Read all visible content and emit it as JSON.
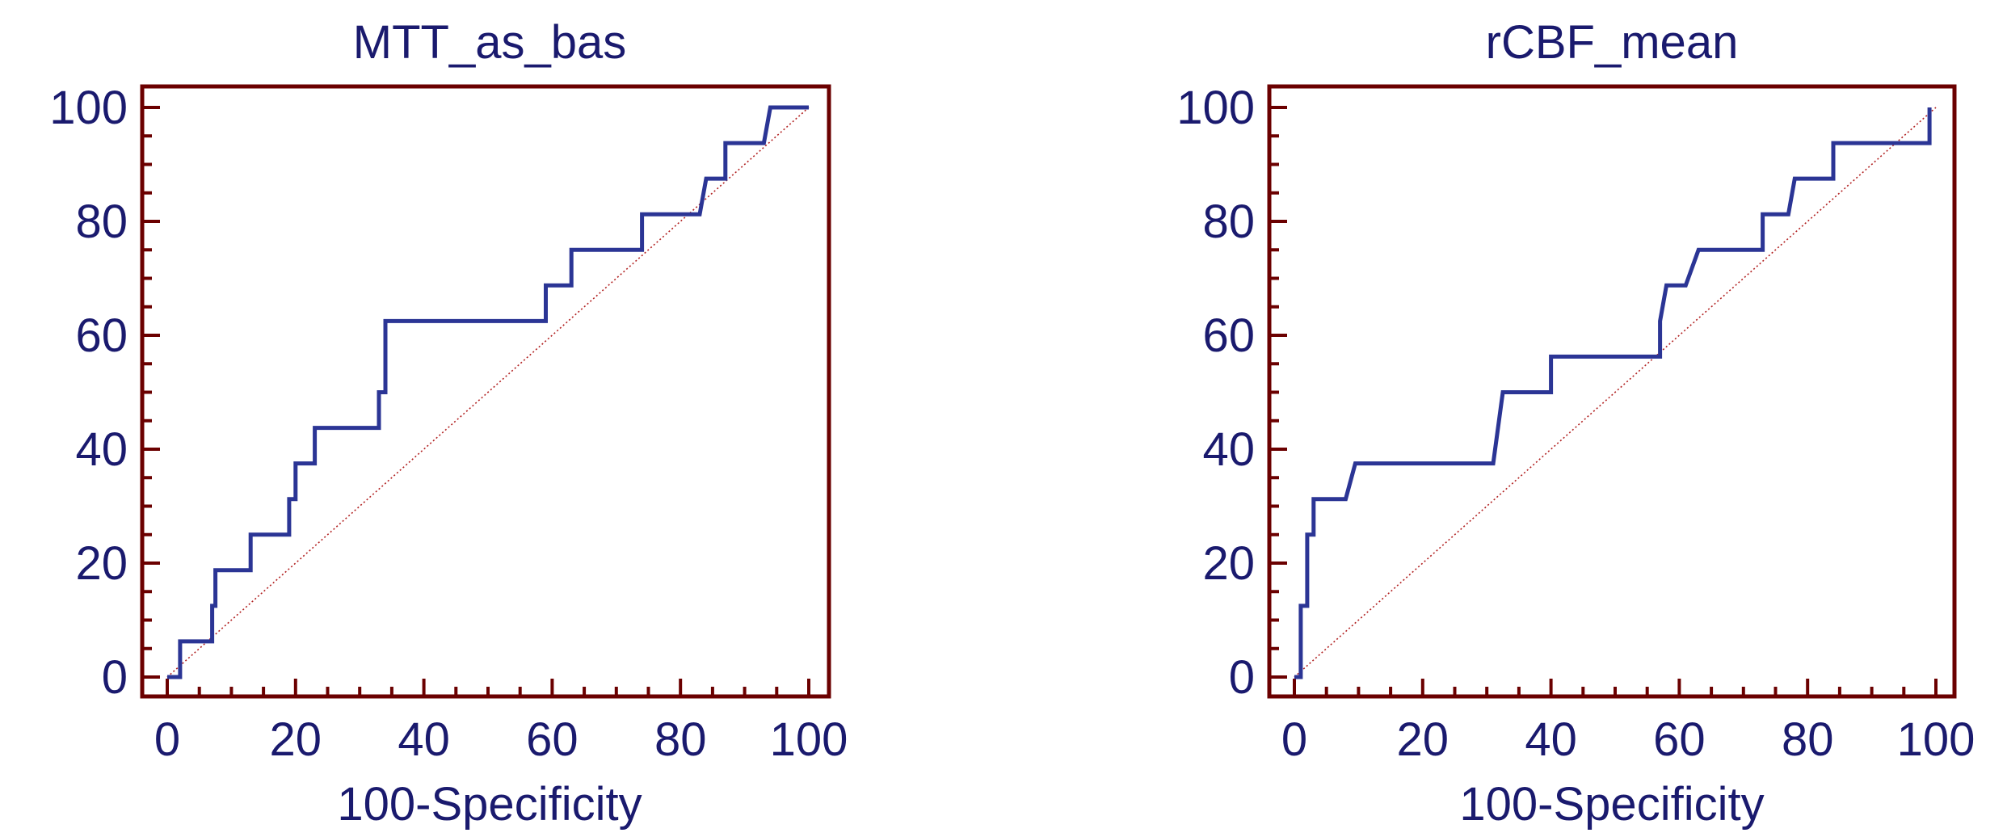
{
  "colors": {
    "frame": "#6b0000",
    "curve": "#2b3595",
    "diagonal": "#b22222",
    "text": "#1a1a6e"
  },
  "chart_data": [
    {
      "type": "line",
      "title": "MTT_as_bas",
      "xlabel": "100-Specificity",
      "ylabel": "",
      "xlim": [
        0,
        100
      ],
      "ylim": [
        0,
        100
      ],
      "xticks": [
        "0",
        "20",
        "40",
        "60",
        "80",
        "100"
      ],
      "yticks": [
        "0",
        "20",
        "40",
        "60",
        "80",
        "100"
      ],
      "grid": false,
      "reference_line": {
        "from": [
          0,
          0
        ],
        "to": [
          100,
          100
        ],
        "style": "dotted"
      },
      "series": [
        {
          "points": [
            [
              0,
              0
            ],
            [
              2,
              0
            ],
            [
              2,
              6.25
            ],
            [
              7,
              6.25
            ],
            [
              7,
              12.5
            ],
            [
              7.5,
              12.5
            ],
            [
              7.5,
              18.75
            ],
            [
              13,
              18.75
            ],
            [
              13,
              25
            ],
            [
              19,
              25
            ],
            [
              19,
              31.25
            ],
            [
              20,
              31.25
            ],
            [
              20,
              37.5
            ],
            [
              23,
              37.5
            ],
            [
              23,
              43.75
            ],
            [
              33,
              43.75
            ],
            [
              33,
              50
            ],
            [
              34,
              50
            ],
            [
              34,
              62.5
            ],
            [
              59,
              62.5
            ],
            [
              59,
              68.75
            ],
            [
              63,
              68.75
            ],
            [
              63,
              75
            ],
            [
              74,
              75
            ],
            [
              74,
              81.25
            ],
            [
              83,
              81.25
            ],
            [
              84,
              87.5
            ],
            [
              87,
              87.5
            ],
            [
              87,
              93.75
            ],
            [
              93,
              93.75
            ],
            [
              94,
              100
            ],
            [
              100,
              100
            ]
          ]
        }
      ]
    },
    {
      "type": "line",
      "title": "rCBF_mean",
      "xlabel": "100-Specificity",
      "ylabel": "",
      "xlim": [
        0,
        100
      ],
      "ylim": [
        0,
        100
      ],
      "xticks": [
        "0",
        "20",
        "40",
        "60",
        "80",
        "100"
      ],
      "yticks": [
        "0",
        "20",
        "40",
        "60",
        "80",
        "100"
      ],
      "grid": false,
      "reference_line": {
        "from": [
          0,
          0
        ],
        "to": [
          100,
          100
        ],
        "style": "dotted"
      },
      "series": [
        {
          "points": [
            [
              0,
              0
            ],
            [
              1,
              0
            ],
            [
              1,
              12.5
            ],
            [
              2,
              12.5
            ],
            [
              2,
              25
            ],
            [
              3,
              25
            ],
            [
              3,
              31.25
            ],
            [
              8,
              31.25
            ],
            [
              9.5,
              37.5
            ],
            [
              31,
              37.5
            ],
            [
              32.5,
              50
            ],
            [
              40,
              50
            ],
            [
              40,
              56.25
            ],
            [
              57,
              56.25
            ],
            [
              57,
              62.5
            ],
            [
              58,
              68.75
            ],
            [
              61,
              68.75
            ],
            [
              63,
              75
            ],
            [
              73,
              75
            ],
            [
              73,
              81.25
            ],
            [
              77,
              81.25
            ],
            [
              78,
              87.5
            ],
            [
              84,
              87.5
            ],
            [
              84,
              93.75
            ],
            [
              99,
              93.75
            ],
            [
              99,
              100
            ]
          ]
        }
      ]
    }
  ]
}
